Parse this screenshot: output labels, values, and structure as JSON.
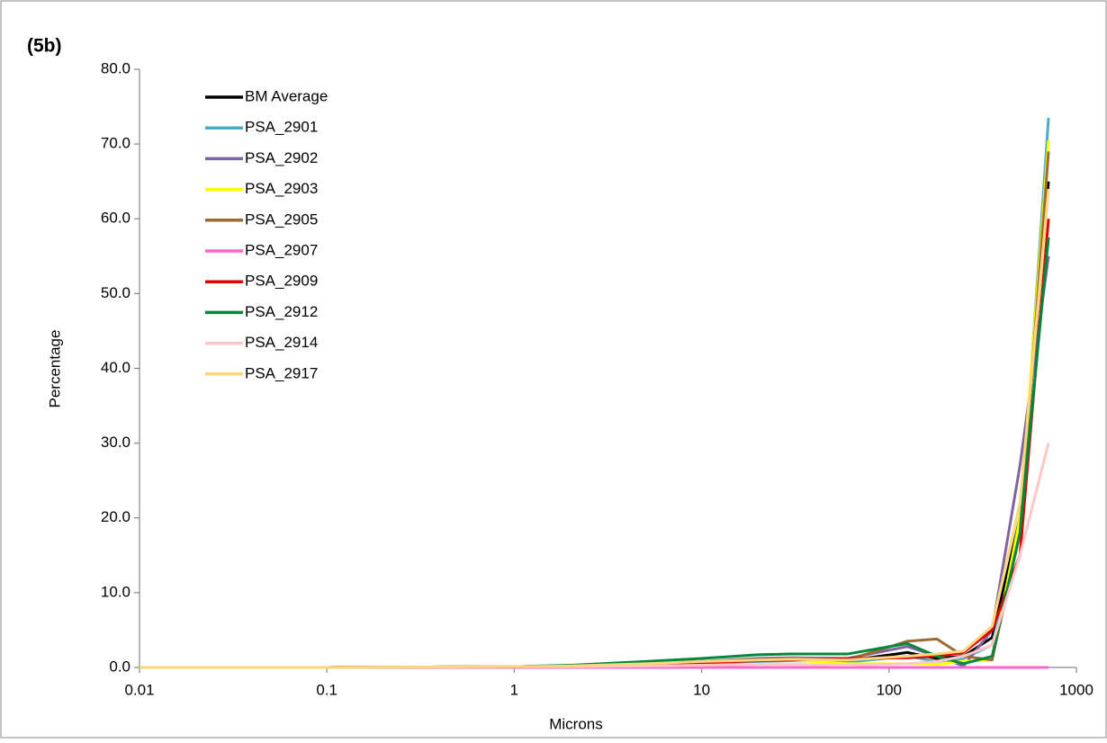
{
  "chart_data": {
    "type": "line",
    "title": "(5b)",
    "x_label": "Microns",
    "y_label": "Percentage",
    "log_x": true,
    "x": [
      0.01,
      0.1,
      1,
      2,
      5,
      10,
      20,
      30,
      60,
      125,
      180,
      250,
      355,
      500,
      710
    ],
    "xlim": [
      0.01,
      1000
    ],
    "xticks": [
      0.01,
      0.1,
      1,
      10,
      100,
      1000
    ],
    "ylim": [
      0,
      80
    ],
    "yticks": [
      {
        "value": 0,
        "label": "0.0"
      },
      {
        "value": 10,
        "label": "10.0"
      },
      {
        "value": 20,
        "label": "20.0"
      },
      {
        "value": 30,
        "label": "30.0"
      },
      {
        "value": 40,
        "label": "40.0"
      },
      {
        "value": 50,
        "label": "50.0"
      },
      {
        "value": 60,
        "label": "60.0"
      },
      {
        "value": 70,
        "label": "70.0"
      },
      {
        "value": 80,
        "label": "80.0"
      }
    ],
    "grid": false,
    "legend": "upper left",
    "series": [
      {
        "name": "BM Average",
        "color": "#000000",
        "values": [
          0,
          0,
          0.1,
          0.2,
          0.5,
          0.8,
          1.0,
          1.0,
          0.9,
          2.0,
          1.2,
          1.5,
          4.0,
          20,
          65
        ]
      },
      {
        "name": "PSA_2901",
        "color": "#4bacc6",
        "values": [
          0,
          0,
          0.1,
          0.2,
          0.4,
          0.6,
          0.8,
          0.9,
          0.7,
          1.5,
          0.8,
          1.2,
          3.0,
          18,
          73.5
        ]
      },
      {
        "name": "PSA_2902",
        "color": "#8064a2",
        "values": [
          0,
          0,
          0.1,
          0.2,
          0.5,
          0.8,
          1.2,
          1.3,
          1.2,
          2.8,
          1.5,
          0.2,
          5.0,
          27,
          55
        ]
      },
      {
        "name": "PSA_2903",
        "color": "#ffff00",
        "values": [
          0,
          0,
          0.1,
          0.2,
          0.4,
          0.7,
          1.0,
          1.0,
          0.5,
          0.5,
          0.4,
          0.8,
          1.0,
          20,
          70.5
        ]
      },
      {
        "name": "PSA_2905",
        "color": "#9c6a34",
        "values": [
          0,
          0,
          0.1,
          0.2,
          0.5,
          0.8,
          1.1,
          1.2,
          1.0,
          3.5,
          3.8,
          1.5,
          1.0,
          18,
          69
        ]
      },
      {
        "name": "PSA_2907",
        "color": "#ff66cc",
        "values": [
          0,
          0,
          0,
          0,
          0,
          0,
          0,
          0,
          0,
          0,
          0,
          0,
          0,
          0,
          0
        ]
      },
      {
        "name": "PSA_2909",
        "color": "#e00000",
        "values": [
          0,
          0,
          0.1,
          0.2,
          0.4,
          0.6,
          0.9,
          1.0,
          1.2,
          1.3,
          1.5,
          2.0,
          5.0,
          15,
          60
        ]
      },
      {
        "name": "PSA_2912",
        "color": "#00883a",
        "values": [
          0,
          0,
          0.1,
          0.3,
          0.8,
          1.2,
          1.7,
          1.8,
          1.8,
          3.2,
          1.5,
          0.5,
          1.5,
          18,
          57.5
        ]
      },
      {
        "name": "PSA_2914",
        "color": "#ffc7c7",
        "values": [
          0,
          0,
          0.1,
          0.1,
          0.2,
          0.3,
          0.4,
          0.4,
          0.3,
          0.5,
          0.8,
          1.5,
          3.0,
          15,
          30
        ]
      },
      {
        "name": "PSA_2917",
        "color": "#fcd57f",
        "values": [
          0,
          0,
          0.1,
          0.2,
          0.5,
          0.8,
          1.0,
          1.1,
          1.0,
          1.5,
          1.8,
          2.2,
          5.5,
          22,
          64
        ]
      }
    ]
  }
}
